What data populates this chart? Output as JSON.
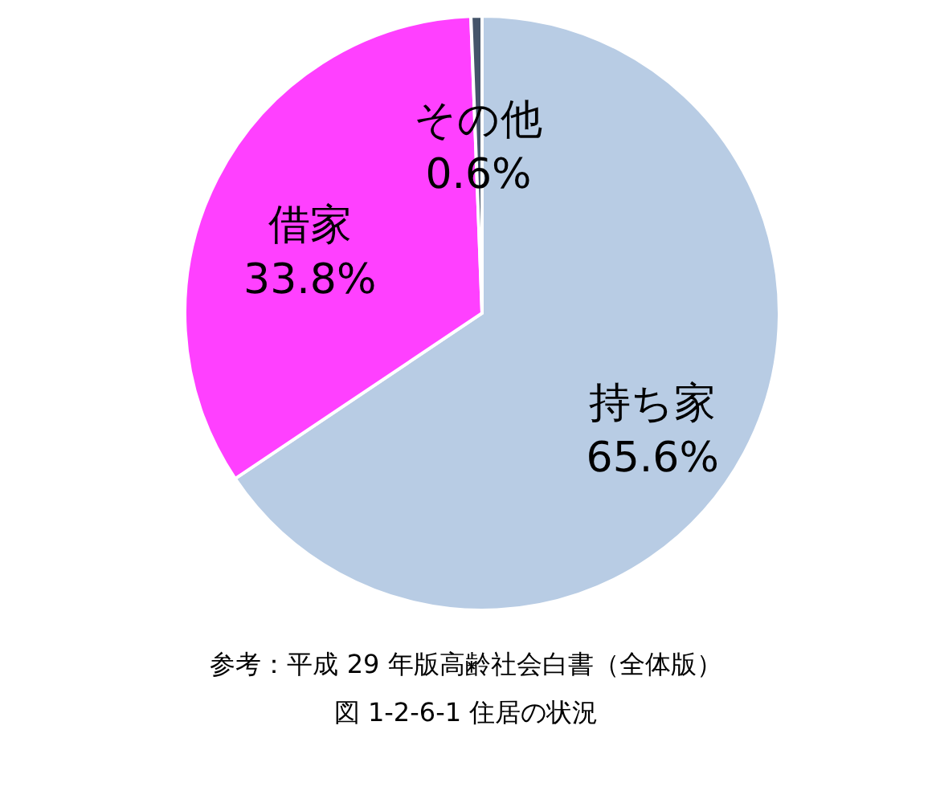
{
  "chart_data": {
    "type": "pie",
    "categories": [
      "持ち家",
      "借家",
      "その他"
    ],
    "values": [
      65.6,
      33.8,
      0.6
    ],
    "colors": [
      "#b8cce4",
      "#ff40ff",
      "#44546a"
    ],
    "value_labels": [
      "65.6%",
      "33.8%",
      "0.6%"
    ],
    "annotations": [
      "参考：平成 29 年版高齢社会白書（全体版）",
      "図 1-2-6-1  住居の状況"
    ]
  }
}
